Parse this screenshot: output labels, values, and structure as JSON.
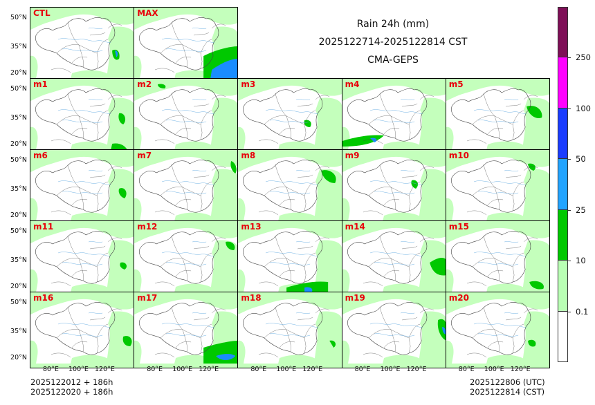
{
  "title": {
    "line1": "Rain 24h (mm)",
    "line2": "2025122714-2025122814 CST",
    "line3": "CMA-GEPS"
  },
  "panels": [
    {
      "label": "CTL"
    },
    {
      "label": "MAX"
    },
    {
      "label": "m1"
    },
    {
      "label": "m2"
    },
    {
      "label": "m3"
    },
    {
      "label": "m4"
    },
    {
      "label": "m5"
    },
    {
      "label": "m6"
    },
    {
      "label": "m7"
    },
    {
      "label": "m8"
    },
    {
      "label": "m9"
    },
    {
      "label": "m10"
    },
    {
      "label": "m11"
    },
    {
      "label": "m12"
    },
    {
      "label": "m13"
    },
    {
      "label": "m14"
    },
    {
      "label": "m15"
    },
    {
      "label": "m16"
    },
    {
      "label": "m17"
    },
    {
      "label": "m18"
    },
    {
      "label": "m19"
    },
    {
      "label": "m20"
    }
  ],
  "axes": {
    "lat_labels": [
      "50°N",
      "35°N",
      "20°N"
    ],
    "lon_labels": [
      "80°E",
      "100°E",
      "120°E"
    ]
  },
  "colorbar": {
    "labels": [
      "250",
      "100",
      "50",
      "25",
      "10",
      "0.1"
    ],
    "colors": [
      "#7f0f57",
      "#ff00ff",
      "#1a3cff",
      "#22a4ff",
      "#00c800",
      "#b9ffb4",
      "#ffffff"
    ]
  },
  "footer": {
    "left_line1": "2025122012 + 186h",
    "left_line2": "2025122020 + 186h",
    "right_line1": "2025122806 (UTC)",
    "right_line2": "2025122814 (CST)"
  },
  "map_colors": {
    "light": "#c4ffbc",
    "green": "#00c800",
    "blue": "#1a8cff",
    "border": "#444444",
    "river": "#5fa8e0"
  }
}
